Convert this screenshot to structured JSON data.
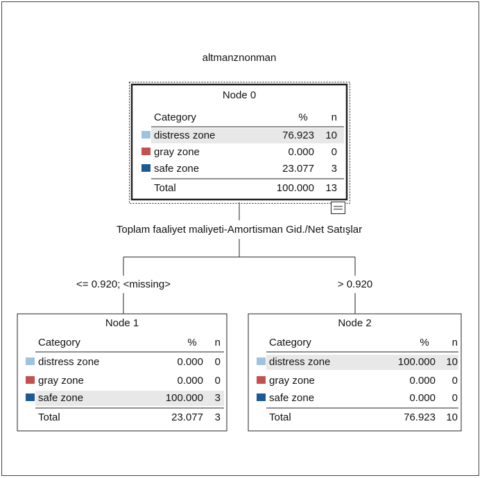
{
  "title": "altmanznonman",
  "split": {
    "label": "Toplam faaliyet maliyeti-Amortisman Gid./Net Satışlar",
    "branches": [
      "<= 0.920; <missing>",
      "> 0.920"
    ]
  },
  "nodes": [
    {
      "title": "Node 0",
      "headers": [
        "Category",
        "%",
        "n"
      ],
      "rows": [
        {
          "category": "distress zone",
          "percent": "76.923",
          "n": "10",
          "color": "#9dc3de"
        },
        {
          "category": "gray zone",
          "percent": "0.000",
          "n": "0",
          "color": "#c4504f"
        },
        {
          "category": "safe zone",
          "percent": "23.077",
          "n": "3",
          "color": "#1b5a94"
        }
      ],
      "total": {
        "label": "Total",
        "percent": "100.000",
        "n": "13"
      }
    },
    {
      "title": "Node 1",
      "headers": [
        "Category",
        "%",
        "n"
      ],
      "rows": [
        {
          "category": "distress zone",
          "percent": "0.000",
          "n": "0",
          "color": "#9dc3de"
        },
        {
          "category": "gray zone",
          "percent": "0.000",
          "n": "0",
          "color": "#c4504f"
        },
        {
          "category": "safe zone",
          "percent": "100.000",
          "n": "3",
          "color": "#1b5a94"
        }
      ],
      "total": {
        "label": "Total",
        "percent": "23.077",
        "n": "3"
      }
    },
    {
      "title": "Node 2",
      "headers": [
        "Category",
        "%",
        "n"
      ],
      "rows": [
        {
          "category": "distress zone",
          "percent": "100.000",
          "n": "10",
          "color": "#9dc3de"
        },
        {
          "category": "gray zone",
          "percent": "0.000",
          "n": "0",
          "color": "#c4504f"
        },
        {
          "category": "safe zone",
          "percent": "0.000",
          "n": "0",
          "color": "#1b5a94"
        }
      ],
      "total": {
        "label": "Total",
        "percent": "76.923",
        "n": "10"
      }
    }
  ]
}
